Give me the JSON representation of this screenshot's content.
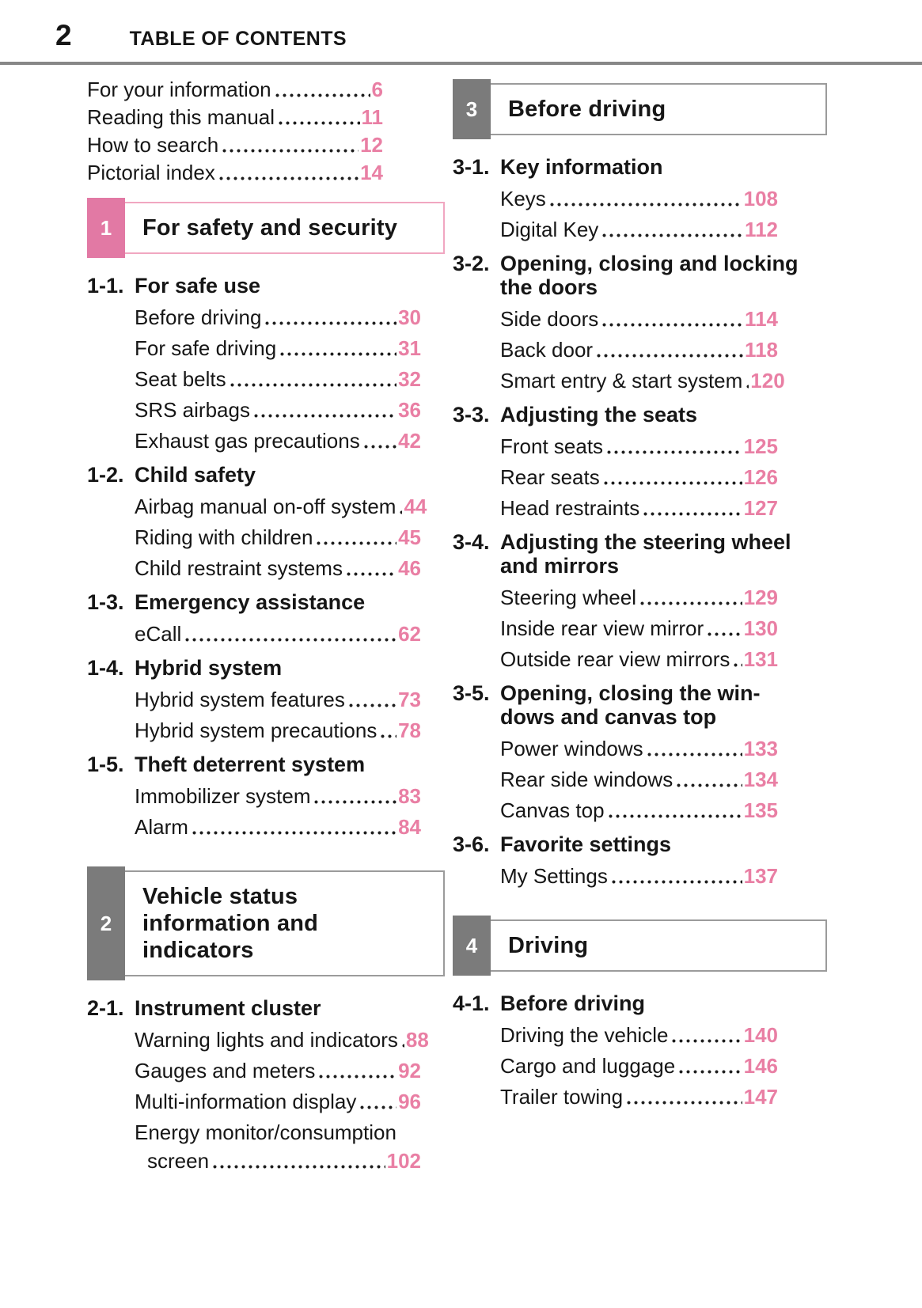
{
  "page": {
    "number": "2",
    "title": "TABLE OF CONTENTS"
  },
  "colors": {
    "accent_pink": "#e97fa4",
    "pink_tab": "#e279a4",
    "pink_box_border": "#f1a7c1",
    "gray_tab": "#7b7b7b",
    "gray_box_border": "#9b9b9b",
    "header_rule": "#878787",
    "text": "#161616"
  },
  "left": {
    "intro": [
      {
        "label": "For your information",
        "page": "6"
      },
      {
        "label": "Reading this manual",
        "page": "11"
      },
      {
        "label": "How to search",
        "page": "12"
      },
      {
        "label": "Pictorial index",
        "page": "14"
      }
    ],
    "sections": [
      {
        "tab": "1",
        "title": "For safety and security",
        "groups": [
          {
            "num": "1-1.",
            "title": "For safe use",
            "items": [
              {
                "label": "Before driving",
                "page": "30"
              },
              {
                "label": "For safe driving",
                "page": "31"
              },
              {
                "label": "Seat belts",
                "page": "32"
              },
              {
                "label": "SRS airbags",
                "page": "36"
              },
              {
                "label": "Exhaust gas precautions",
                "page": "42"
              }
            ]
          },
          {
            "num": "1-2.",
            "title": "Child safety",
            "items": [
              {
                "label": "Airbag manual on-off system",
                "page": "44"
              },
              {
                "label": "Riding with children",
                "page": "45"
              },
              {
                "label": "Child restraint systems",
                "page": "46"
              }
            ]
          },
          {
            "num": "1-3.",
            "title": "Emergency assistance",
            "items": [
              {
                "label": "eCall",
                "page": "62"
              }
            ]
          },
          {
            "num": "1-4.",
            "title": "Hybrid system",
            "items": [
              {
                "label": "Hybrid system features",
                "page": "73"
              },
              {
                "label": "Hybrid system precautions",
                "page": "78"
              }
            ]
          },
          {
            "num": "1-5.",
            "title": "Theft deterrent system",
            "items": [
              {
                "label": "Immobilizer system",
                "page": "83"
              },
              {
                "label": "Alarm",
                "page": "84"
              }
            ]
          }
        ]
      },
      {
        "tab": "2",
        "title": "Vehicle status",
        "title2": "information and",
        "title3": "indicators",
        "groups": [
          {
            "num": "2-1.",
            "title": "Instrument cluster",
            "items": [
              {
                "label": "Warning lights and indicators",
                "page": "88"
              },
              {
                "label": "Gauges and meters",
                "page": "92"
              },
              {
                "label": "Multi-information display",
                "page": "96"
              },
              {
                "label": "Energy monitor/consumption",
                "label2": "screen",
                "page": "102"
              }
            ]
          }
        ]
      }
    ]
  },
  "right": {
    "sections": [
      {
        "tab": "3",
        "title": "Before driving",
        "groups": [
          {
            "num": "3-1.",
            "title": "Key information",
            "items": [
              {
                "label": "Keys",
                "page": "108"
              },
              {
                "label": "Digital Key",
                "page": "112"
              }
            ]
          },
          {
            "num": "3-2.",
            "title": "Opening, closing and locking",
            "title2": "the doors",
            "items": [
              {
                "label": "Side doors",
                "page": "114"
              },
              {
                "label": "Back door",
                "page": "118"
              },
              {
                "label": "Smart entry & start system",
                "page": "120"
              }
            ]
          },
          {
            "num": "3-3.",
            "title": "Adjusting the seats",
            "items": [
              {
                "label": "Front seats",
                "page": "125"
              },
              {
                "label": "Rear seats",
                "page": "126"
              },
              {
                "label": "Head restraints",
                "page": "127"
              }
            ]
          },
          {
            "num": "3-4.",
            "title": "Adjusting the steering wheel",
            "title2": "and mirrors",
            "items": [
              {
                "label": "Steering wheel",
                "page": "129"
              },
              {
                "label": "Inside rear view mirror",
                "page": "130"
              },
              {
                "label": "Outside rear view mirrors",
                "page": "131"
              }
            ]
          },
          {
            "num": "3-5.",
            "title": "Opening, closing the win-",
            "title2": "dows and canvas top",
            "items": [
              {
                "label": "Power windows",
                "page": "133"
              },
              {
                "label": "Rear side windows",
                "page": "134"
              },
              {
                "label": "Canvas top",
                "page": "135"
              }
            ]
          },
          {
            "num": "3-6.",
            "title": "Favorite settings",
            "items": [
              {
                "label": "My Settings",
                "page": "137"
              }
            ]
          }
        ]
      },
      {
        "tab": "4",
        "title": "Driving",
        "groups": [
          {
            "num": "4-1.",
            "title": "Before driving",
            "items": [
              {
                "label": "Driving the vehicle",
                "page": "140"
              },
              {
                "label": "Cargo and luggage",
                "page": "146"
              },
              {
                "label": "Trailer towing",
                "page": "147"
              }
            ]
          }
        ]
      }
    ]
  }
}
